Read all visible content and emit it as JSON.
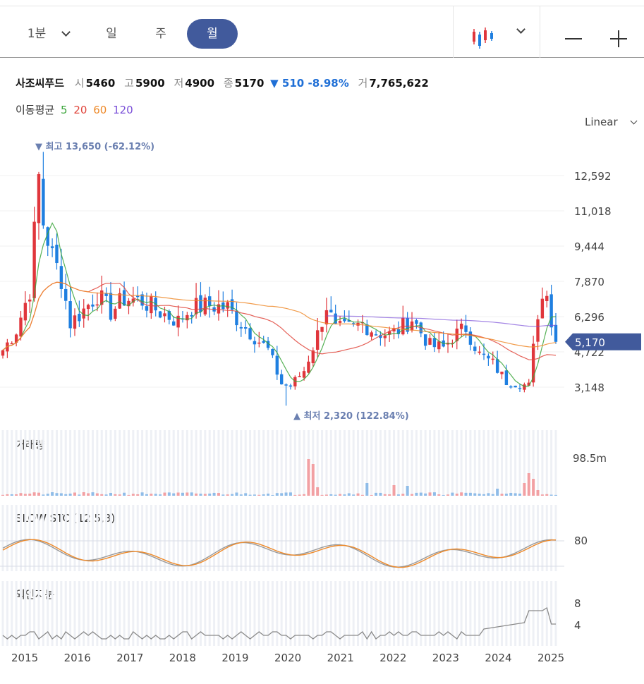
{
  "toolbar": {
    "timeframes": [
      "1분",
      "일",
      "주",
      "월"
    ],
    "active_timeframe": "월"
  },
  "quote": {
    "name": "사조씨푸드",
    "open_label": "시",
    "open": "5460",
    "high_label": "고",
    "high": "5900",
    "low_label": "저",
    "low": "4900",
    "close_label": "종",
    "close": "5170",
    "change": "▼ 510 -8.98%",
    "volume_label": "거",
    "volume": "7,765,622"
  },
  "moving_average": {
    "label": "이동평균",
    "periods": [
      {
        "label": "5",
        "color": "#3aa53a"
      },
      {
        "label": "20",
        "color": "#e0463c"
      },
      {
        "label": "60",
        "color": "#ee8a2a"
      },
      {
        "label": "120",
        "color": "#7a4fd8"
      }
    ]
  },
  "scale_mode": "Linear",
  "colors": {
    "up": "#e0363c",
    "down": "#1f7fe0",
    "accent": "#415a9c",
    "annotation": "#6a7fb0"
  },
  "chart_data": [
    {
      "type": "candlestick",
      "title": "사조씨푸드",
      "x_ticks": [
        "2015",
        "2016",
        "2017",
        "2018",
        "2019",
        "2020",
        "2021",
        "2022",
        "2023",
        "2024",
        "2025"
      ],
      "y_ticks": [
        "12,592",
        "11,018",
        "9,444",
        "7,870",
        "6,296",
        "4,722",
        "3,148"
      ],
      "y_range": [
        2320,
        13650
      ],
      "last_price_label": "5,170",
      "last_price": 5170,
      "high_annotation": "▼ 최고 13,650 (-62.12%)",
      "low_annotation": "▲ 최저 2,320 (122.84%)",
      "high": 13650,
      "low": 2320,
      "series": [
        {
          "name": "5",
          "smoothed": true
        },
        {
          "name": "20"
        },
        {
          "name": "60"
        },
        {
          "name": "120"
        }
      ]
    },
    {
      "type": "bar",
      "title": "거래량",
      "y_ticks": [
        "98.5m"
      ],
      "y_max": 98.5
    },
    {
      "type": "line",
      "title": "SLOW STC (12,5,3)",
      "y_ticks": [
        "80"
      ]
    },
    {
      "type": "line",
      "title": "외인지분",
      "y_ticks": [
        "8",
        "4"
      ]
    }
  ]
}
